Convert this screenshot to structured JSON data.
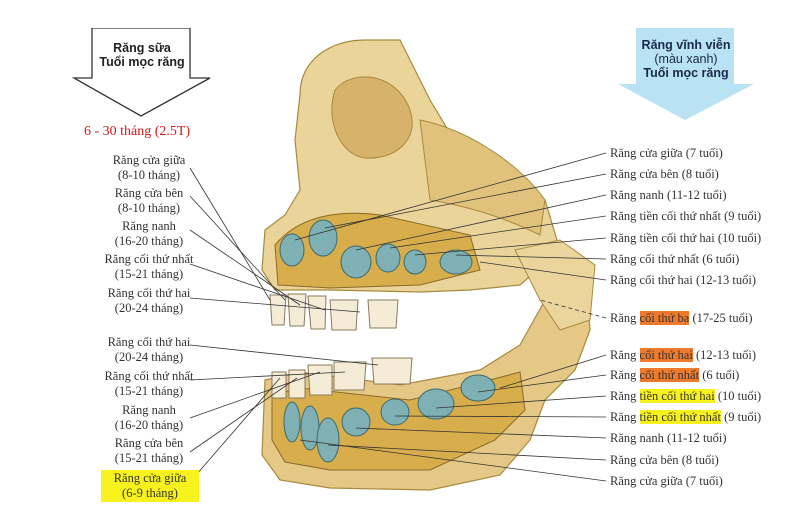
{
  "primary_header": {
    "line1": "Răng sữa",
    "line2": "Tuổi mọc răng"
  },
  "primary_age_range": "6 - 30 tháng (2.5T)",
  "permanent_header": {
    "line1": "Răng vĩnh viễn",
    "line2": "(màu xanh)",
    "line3": "Tuổi mọc răng"
  },
  "left_labels": [
    {
      "name": "Răng cửa giữa",
      "age": "(8-10 tháng)"
    },
    {
      "name": "Răng cửa bên",
      "age": "(8-10 tháng)"
    },
    {
      "name": "Răng nanh",
      "age": "(16-20 tháng)"
    },
    {
      "name": "Răng cối thứ nhất",
      "age": "(15-21 tháng)"
    },
    {
      "name": "Răng cối thứ hai",
      "age": "(20-24 tháng)"
    },
    {
      "name": "Răng cối thứ hai",
      "age": "(20-24 tháng)"
    },
    {
      "name": "Răng cối thứ nhất",
      "age": "(15-21 tháng)"
    },
    {
      "name": "Răng nanh",
      "age": "(16-20 tháng)"
    },
    {
      "name": "Răng cửa bên",
      "age": "(15-21 tháng)"
    },
    {
      "name": "Răng cửa giữa",
      "age": "(6-9 tháng)"
    }
  ],
  "right_labels": [
    {
      "prefix": "Răng ",
      "name": "cửa giữa",
      "age": " (7 tuổi)"
    },
    {
      "prefix": "Răng ",
      "name": "cửa bên",
      "age": " (8 tuổi)"
    },
    {
      "prefix": "Răng ",
      "name": "nanh",
      "age": " (11-12 tuổi)"
    },
    {
      "prefix": "Răng ",
      "name": "tiền cối thứ nhất",
      "age": " (9 tuổi)"
    },
    {
      "prefix": "Răng ",
      "name": "tiền cối thứ hai",
      "age": " (10 tuổi)"
    },
    {
      "prefix": "Răng ",
      "name": "cối thứ nhất",
      "age": " (6 tuổi)"
    },
    {
      "prefix": "Răng ",
      "name": "cối thứ hai",
      "age": " (12-13 tuổi)"
    },
    {
      "prefix": "Răng ",
      "name": "cối thứ ba",
      "age": " (17-25 tuổi)"
    },
    {
      "prefix": "Răng ",
      "name": "cối thứ hai",
      "age": " (12-13 tuổi)"
    },
    {
      "prefix": "Răng ",
      "name": "cối thứ nhất",
      "age": " (6 tuổi)"
    },
    {
      "prefix": "Răng ",
      "name": "tiền cối thứ hai",
      "age": " (10 tuổi)"
    },
    {
      "prefix": "Răng ",
      "name": "tiền cối thứ nhất",
      "age": " (9 tuổi)"
    },
    {
      "prefix": "Răng ",
      "name": "nanh",
      "age": " (11-12 tuổi)"
    },
    {
      "prefix": "Răng ",
      "name": "cửa bên",
      "age": " (8 tuổi)"
    },
    {
      "prefix": "Răng ",
      "name": "cửa giữa",
      "age": " (7 tuổi)"
    }
  ],
  "colors": {
    "bone": "#e8cf8a",
    "bone_dark": "#c9a550",
    "permanent_tooth": "#7fb0b4",
    "primary_tooth": "#f4ecd6",
    "highlight_orange": "#f07a2c",
    "highlight_yellow": "#f7f21e",
    "age_red": "#d01818",
    "arrow_blue": "#b9e3f5"
  }
}
